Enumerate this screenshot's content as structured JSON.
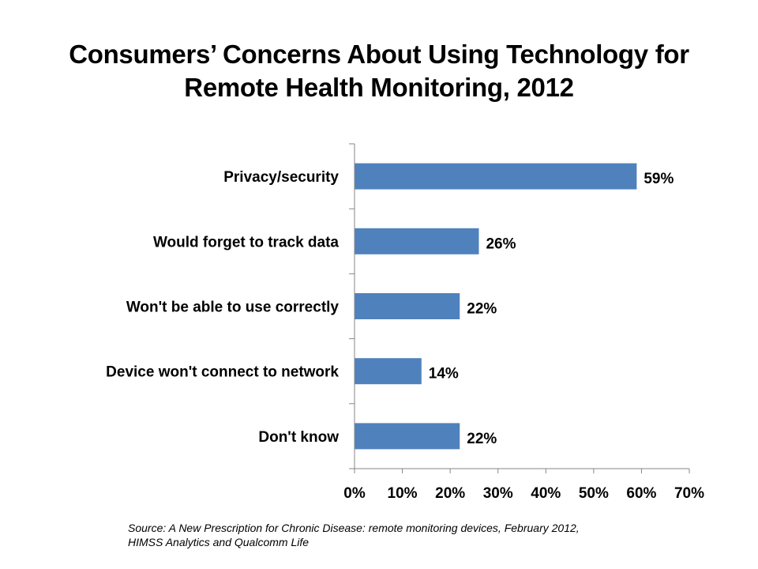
{
  "chart_data": {
    "type": "bar",
    "orientation": "horizontal",
    "title": [
      "Consumers’ Concerns About Using Technology for",
      "Remote Health Monitoring, 2012"
    ],
    "categories": [
      "Privacy/security",
      "Would forget to track data",
      "Won't be able to use correctly",
      "Device won't connect to network",
      "Don't know"
    ],
    "values": [
      59,
      26,
      22,
      14,
      22
    ],
    "data_labels": [
      "59%",
      "26%",
      "22%",
      "14%",
      "22%"
    ],
    "xlabel": "",
    "ylabel": "",
    "xlim": [
      0,
      70
    ],
    "x_ticks": [
      0,
      10,
      20,
      30,
      40,
      50,
      60,
      70
    ],
    "x_tick_labels": [
      "0%",
      "10%",
      "20%",
      "30%",
      "40%",
      "50%",
      "60%",
      "70%"
    ],
    "grid": false,
    "bar_color": "#4F81BD",
    "source": [
      "Source: A New  Prescription for  Chronic Disease: remote  monitoring devices, February 2012,",
      "HIMSS Analytics and Qualcomm Life"
    ]
  }
}
